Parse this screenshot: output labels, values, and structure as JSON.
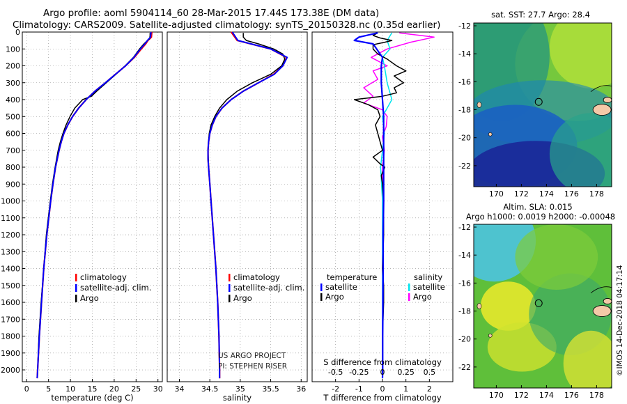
{
  "header": {
    "title_line1": "Argo profile: aoml 5904114_60 28-Mar-2015 17.44S 173.38E (DM data)",
    "title_line2": "Climatology: CARS2009. Satellite-adjusted climatology: synTS_20150328.nc (0.35d earlier)"
  },
  "colors": {
    "climatology": "#ff0000",
    "satellite": "#0000ff",
    "argo": "#000000",
    "sat_salinity": "#00e5ee",
    "argo_salinity": "#ff00ff"
  },
  "chart_data": [
    {
      "type": "line",
      "id": "temperature",
      "xlabel": "temperature (deg C)",
      "ylabel": "",
      "xlim": [
        -1,
        31
      ],
      "ylim": [
        2070,
        0
      ],
      "xticks": [
        "0",
        "5",
        "10",
        "15",
        "20",
        "25",
        "30"
      ],
      "yticks": [
        "0",
        "100",
        "200",
        "300",
        "400",
        "500",
        "600",
        "700",
        "800",
        "900",
        "1000",
        "1100",
        "1200",
        "1300",
        "1400",
        "1500",
        "1600",
        "1700",
        "1800",
        "1900",
        "2000"
      ],
      "legend": [
        "climatology",
        "satellite-adj. clim.",
        "Argo"
      ],
      "series": [
        {
          "name": "climatology",
          "depth": [
            0,
            30,
            50,
            70,
            100,
            150,
            200,
            250,
            300,
            350,
            400,
            450,
            500,
            550,
            600,
            650,
            700,
            800,
            900,
            1000,
            1200,
            1400,
            1600,
            1800,
            2000,
            2050
          ],
          "values": [
            28.6,
            28.5,
            27.7,
            27.2,
            26.2,
            24.6,
            22.6,
            20.3,
            18.0,
            15.6,
            13.6,
            11.9,
            10.5,
            9.4,
            8.5,
            7.9,
            7.4,
            6.6,
            6.0,
            5.5,
            4.6,
            3.9,
            3.4,
            2.9,
            2.5,
            2.4
          ]
        },
        {
          "name": "satellite-adj. clim.",
          "depth": [
            0,
            30,
            50,
            70,
            100,
            150,
            200,
            250,
            300,
            350,
            400,
            450,
            500,
            550,
            600,
            650,
            700,
            800,
            900,
            1000,
            1200,
            1400,
            1600,
            1800,
            2000,
            2050
          ],
          "values": [
            28.4,
            28.3,
            27.6,
            27.0,
            26.0,
            24.5,
            22.6,
            20.3,
            18.0,
            15.6,
            13.6,
            11.9,
            10.5,
            9.4,
            8.5,
            7.9,
            7.4,
            6.6,
            6.0,
            5.5,
            4.6,
            3.9,
            3.4,
            2.9,
            2.5,
            2.4
          ]
        },
        {
          "name": "Argo",
          "depth": [
            5,
            20,
            40,
            55,
            70,
            100,
            150,
            200,
            250,
            300,
            350,
            380,
            400,
            450,
            500,
            550,
            600,
            650,
            700,
            800,
            900,
            1000,
            1200,
            1400,
            1600,
            1800,
            2000
          ],
          "values": [
            28.2,
            28.2,
            28.1,
            27.4,
            26.8,
            25.8,
            24.4,
            22.5,
            20.4,
            18.2,
            16.0,
            14.8,
            12.8,
            11.0,
            9.9,
            9.0,
            8.3,
            7.7,
            7.2,
            6.5,
            5.9,
            5.4,
            4.5,
            3.9,
            3.3,
            2.8,
            2.5
          ]
        }
      ]
    },
    {
      "type": "line",
      "id": "salinity",
      "xlabel": "salinity",
      "xlim": [
        33.8,
        36.1
      ],
      "ylim": [
        2070,
        0
      ],
      "xticks": [
        "34",
        "34.5",
        "35",
        "35.5",
        "36"
      ],
      "legend": [
        "climatology",
        "satellite-adj. clim.",
        "Argo"
      ],
      "series": [
        {
          "name": "climatology",
          "depth": [
            0,
            50,
            100,
            150,
            200,
            250,
            300,
            350,
            400,
            450,
            500,
            550,
            600,
            650,
            700,
            750,
            800,
            900,
            1000,
            1200,
            1400,
            1600,
            1800,
            2000,
            2050
          ],
          "values": [
            34.85,
            34.95,
            35.5,
            35.76,
            35.7,
            35.55,
            35.3,
            35.05,
            34.85,
            34.7,
            34.6,
            34.54,
            34.5,
            34.48,
            34.47,
            34.47,
            34.48,
            34.5,
            34.52,
            34.56,
            34.6,
            34.63,
            34.65,
            34.66,
            34.66
          ]
        },
        {
          "name": "satellite-adj. clim.",
          "depth": [
            0,
            50,
            100,
            150,
            200,
            250,
            300,
            350,
            400,
            450,
            500,
            550,
            600,
            650,
            700,
            750,
            800,
            900,
            1000,
            1200,
            1400,
            1600,
            1800,
            2000,
            2050
          ],
          "values": [
            34.87,
            34.96,
            35.5,
            35.77,
            35.7,
            35.56,
            35.3,
            35.05,
            34.85,
            34.7,
            34.6,
            34.54,
            34.5,
            34.48,
            34.47,
            34.47,
            34.48,
            34.5,
            34.52,
            34.56,
            34.6,
            34.63,
            34.65,
            34.66,
            34.66
          ]
        },
        {
          "name": "Argo",
          "depth": [
            5,
            30,
            50,
            70,
            100,
            130,
            160,
            200,
            250,
            300,
            350,
            400,
            450,
            500,
            550,
            600,
            650,
            700,
            800,
            900,
            1000,
            1200,
            1400,
            1600,
            1800,
            2000
          ],
          "values": [
            35.05,
            35.05,
            35.1,
            35.3,
            35.55,
            35.7,
            35.73,
            35.68,
            35.5,
            35.2,
            34.95,
            34.78,
            34.66,
            34.58,
            34.52,
            34.49,
            34.48,
            34.47,
            34.48,
            34.5,
            34.52,
            34.56,
            34.6,
            34.63,
            34.65,
            34.66
          ]
        }
      ]
    },
    {
      "type": "line",
      "id": "difference",
      "xlabel": "T difference from climatology",
      "xlabel_top": "S difference from climatology",
      "xlim": [
        -3,
        3
      ],
      "ylim": [
        2070,
        0
      ],
      "xticks": [
        "-2",
        "-1",
        "0",
        "1",
        "2"
      ],
      "xticks_top": [
        "-0.5",
        "-0.25",
        "0",
        "0.25",
        "0.5"
      ],
      "legend_left": [
        "temperature",
        "satellite",
        "Argo"
      ],
      "legend_right": [
        "salinity",
        "satellite",
        "Argo"
      ],
      "series": [
        {
          "name": "T satellite",
          "depth": [
            5,
            30,
            50,
            70,
            90,
            110,
            150,
            200,
            300,
            400,
            500,
            600,
            700,
            800,
            1000,
            1200,
            1400,
            1600,
            1800,
            2000,
            2050
          ],
          "values": [
            -0.2,
            -1.0,
            -1.2,
            -0.4,
            -0.3,
            -0.2,
            0.0,
            -0.05,
            -0.05,
            0.0,
            0.05,
            0.05,
            0.05,
            0.05,
            0.05,
            0.03,
            0.03,
            0.02,
            0.01,
            0.01,
            0.0
          ]
        },
        {
          "name": "T Argo",
          "depth": [
            5,
            20,
            35,
            50,
            60,
            75,
            100,
            130,
            160,
            200,
            230,
            260,
            300,
            330,
            360,
            380,
            400,
            430,
            460,
            500,
            550,
            600,
            650,
            700,
            740,
            780,
            800,
            850,
            900,
            1000,
            1200,
            1400,
            1500,
            1600,
            1800,
            2000
          ],
          "values": [
            -0.2,
            -0.4,
            -0.1,
            0.4,
            0.1,
            -0.4,
            -0.4,
            -0.2,
            0.2,
            0.6,
            1.0,
            0.5,
            0.9,
            0.5,
            0.6,
            0.0,
            -1.2,
            -0.6,
            -0.2,
            -0.1,
            -0.3,
            -0.2,
            -0.1,
            0.0,
            -0.4,
            -0.1,
            0.1,
            -0.05,
            0.0,
            0.05,
            0.05,
            0.0,
            0.05,
            0.05,
            0.0,
            0.0
          ]
        },
        {
          "name": "S satellite",
          "depth": [
            5,
            50,
            100,
            150,
            200,
            300,
            400,
            500,
            600,
            700,
            800,
            1000,
            1200,
            1400,
            1600,
            1800,
            2000,
            2050
          ],
          "values": [
            0.1,
            0.05,
            0.08,
            0.0,
            0.02,
            0.05,
            0.1,
            0.0,
            0.02,
            0.0,
            -0.02,
            0.0,
            0.0,
            0.0,
            0.0,
            0.0,
            0.0,
            0.0
          ]
        },
        {
          "name": "S Argo",
          "depth": [
            5,
            30,
            60,
            100,
            150,
            200,
            230,
            280,
            330,
            380,
            420,
            460,
            500,
            560,
            620,
            700,
            800,
            900,
            1000,
            1200,
            1400,
            1600,
            1800,
            2000
          ],
          "values": [
            0.18,
            0.55,
            0.3,
            0.05,
            -0.12,
            0.05,
            -0.1,
            -0.05,
            -0.2,
            -0.1,
            -0.2,
            0.0,
            0.05,
            0.04,
            0.0,
            0.02,
            0.0,
            0.0,
            0.0,
            0.0,
            0.0,
            0.0,
            0.0,
            0.0
          ]
        }
      ]
    },
    {
      "type": "heatmap",
      "id": "sst_map",
      "title": "sat. SST: 27.7 Argo: 28.4",
      "xticks": [
        "170",
        "172",
        "174",
        "176",
        "178"
      ],
      "yticks": [
        "-12",
        "-14",
        "-16",
        "-18",
        "-20",
        "-22"
      ],
      "xlim": [
        168.2,
        179.2
      ],
      "ylim": [
        -23.5,
        -11.8
      ],
      "float_position": [
        173.38,
        -17.44
      ]
    },
    {
      "type": "heatmap",
      "id": "sla_map",
      "title": "Altim. SLA: 0.015",
      "subtitle": "Argo h1000: 0.0019 h2000: -0.00048",
      "xticks": [
        "170",
        "172",
        "174",
        "176",
        "178"
      ],
      "yticks": [
        "-12",
        "-14",
        "-16",
        "-18",
        "-20",
        "-22"
      ],
      "xlim": [
        168.2,
        179.2
      ],
      "ylim": [
        -23.5,
        -11.8
      ],
      "float_position": [
        173.38,
        -17.44
      ]
    }
  ],
  "legend_labels": {
    "climatology": "climatology",
    "satellite_adj": "satellite-adj. clim.",
    "argo": "Argo",
    "temperature": "temperature",
    "salinity": "salinity",
    "satellite": "satellite"
  },
  "credits": {
    "line1": "US ARGO PROJECT",
    "line2": "PI: STEPHEN RISER"
  },
  "footer": {
    "vertical_label": "©IMOS 14-Dec-2018 04:17:14"
  }
}
